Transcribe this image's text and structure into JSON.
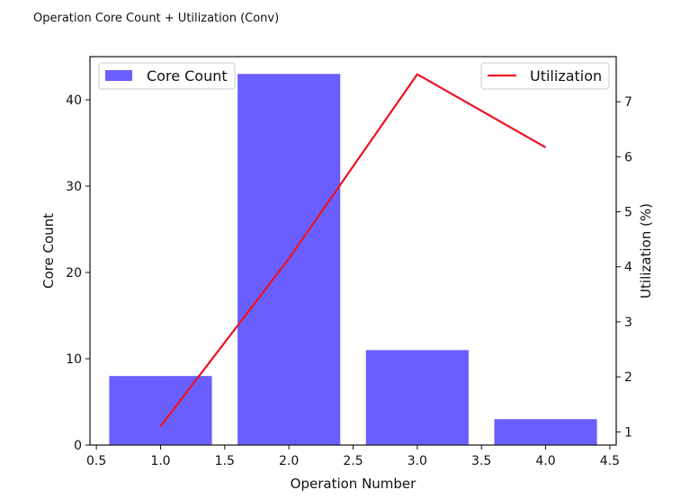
{
  "page": {
    "title": "Operation Core Count + Utilization (Conv)"
  },
  "chart_data": {
    "type": "bar",
    "title": "Operation Core Count + Utilization (Conv)",
    "xlabel": "Operation Number",
    "ylabel": "Core Count",
    "y2label": "Utilization (%)",
    "xlim": [
      0.45,
      4.55
    ],
    "ylim": [
      0,
      45
    ],
    "y2lim": [
      0.76,
      7.82
    ],
    "x_ticks": [
      0.5,
      1.0,
      1.5,
      2.0,
      2.5,
      3.0,
      3.5,
      4.0,
      4.5
    ],
    "x_tick_labels": [
      "0.5",
      "1.0",
      "1.5",
      "2.0",
      "2.5",
      "3.0",
      "3.5",
      "4.0",
      "4.5"
    ],
    "y_ticks": [
      0,
      10,
      20,
      30,
      40
    ],
    "y_tick_labels": [
      "0",
      "10",
      "20",
      "30",
      "40"
    ],
    "y2_ticks": [
      1,
      2,
      3,
      4,
      5,
      6,
      7
    ],
    "y2_tick_labels": [
      "1",
      "2",
      "3",
      "4",
      "5",
      "6",
      "7"
    ],
    "grid": false,
    "categories": [
      1,
      2,
      3,
      4
    ],
    "series": [
      {
        "name": "Core Count",
        "type": "bar",
        "axis": "left",
        "color": "#6a5ffe",
        "values": [
          8,
          43,
          11,
          3
        ]
      },
      {
        "name": "Utilization",
        "type": "line",
        "axis": "right",
        "color": "#ee1122",
        "values": [
          1.1,
          4.15,
          7.5,
          6.17
        ]
      }
    ],
    "legends": [
      {
        "placement": "top-left",
        "label": "Core Count"
      },
      {
        "placement": "top-right",
        "label": "Utilization"
      }
    ]
  }
}
